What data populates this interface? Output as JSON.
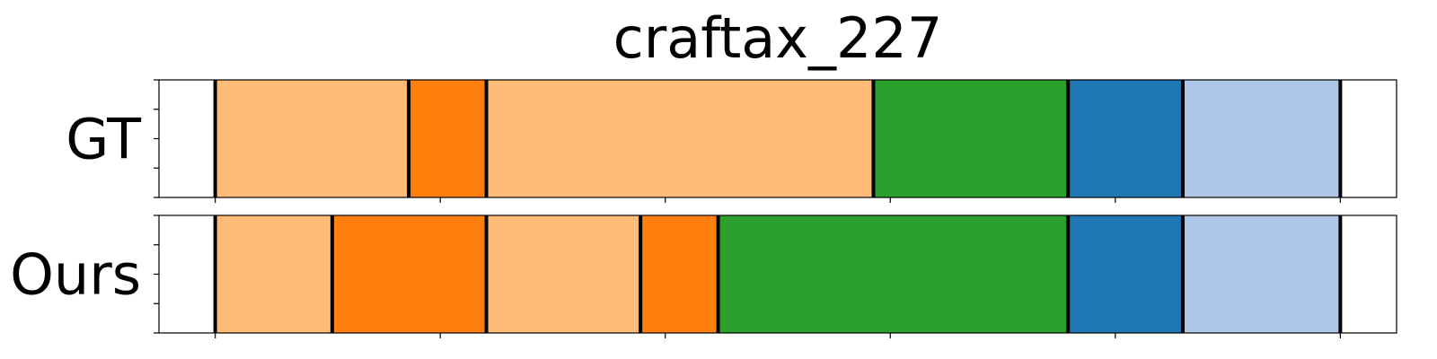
{
  "chart_data": {
    "type": "bar",
    "title": "craftax_227",
    "xlim": [
      0,
      1.1
    ],
    "ylim": [
      0,
      1
    ],
    "grid": false,
    "legend": "none",
    "x_ticks": [
      0.05,
      0.25,
      0.45,
      0.65,
      0.85,
      1.05
    ],
    "series": [
      {
        "name": "GT",
        "segments": [
          {
            "start": 0.05,
            "end": 0.222,
            "color": "#ffbb78"
          },
          {
            "start": 0.222,
            "end": 0.291,
            "color": "#ff7f0e"
          },
          {
            "start": 0.291,
            "end": 0.635,
            "color": "#ffbb78"
          },
          {
            "start": 0.635,
            "end": 0.808,
            "color": "#2ca02c"
          },
          {
            "start": 0.808,
            "end": 0.91,
            "color": "#1f77b4"
          },
          {
            "start": 0.91,
            "end": 1.05,
            "color": "#aec7e8"
          }
        ]
      },
      {
        "name": "Ours",
        "segments": [
          {
            "start": 0.05,
            "end": 0.154,
            "color": "#ffbb78"
          },
          {
            "start": 0.154,
            "end": 0.291,
            "color": "#ff7f0e"
          },
          {
            "start": 0.291,
            "end": 0.428,
            "color": "#ffbb78"
          },
          {
            "start": 0.428,
            "end": 0.497,
            "color": "#ff7f0e"
          },
          {
            "start": 0.497,
            "end": 0.808,
            "color": "#2ca02c"
          },
          {
            "start": 0.808,
            "end": 0.91,
            "color": "#1f77b4"
          },
          {
            "start": 0.91,
            "end": 1.05,
            "color": "#aec7e8"
          }
        ]
      }
    ]
  }
}
